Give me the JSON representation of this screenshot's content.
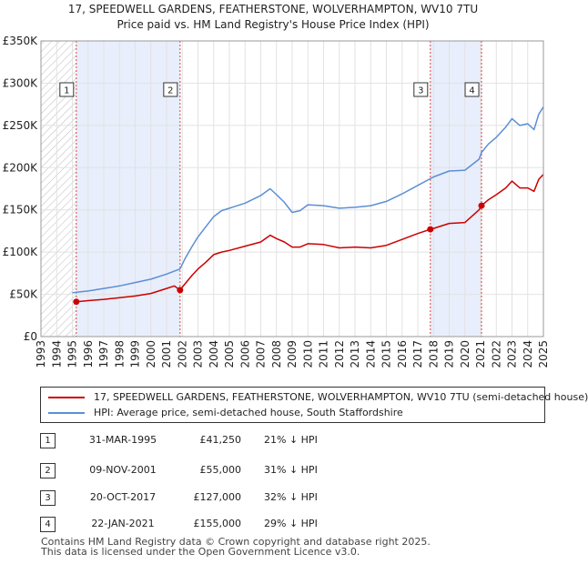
{
  "page": {
    "title_line1": "17, SPEEDWELL GARDENS, FEATHERSTONE, WOLVERHAMPTON, WV10 7TU",
    "title_line2": "Price paid vs. HM Land Registry's House Price Index (HPI)"
  },
  "legend": {
    "red_label": "17, SPEEDWELL GARDENS, FEATHERSTONE, WOLVERHAMPTON, WV10 7TU (semi-detached house)",
    "blue_label": "HPI: Average price, semi-detached house, South Staffordshire"
  },
  "transactions": [
    {
      "num": "1",
      "date": "31-MAR-1995",
      "price": "£41,250",
      "hpi": "21% ↓ HPI"
    },
    {
      "num": "2",
      "date": "09-NOV-2001",
      "price": "£55,000",
      "hpi": "31% ↓ HPI"
    },
    {
      "num": "3",
      "date": "20-OCT-2017",
      "price": "£127,000",
      "hpi": "32% ↓ HPI"
    },
    {
      "num": "4",
      "date": "22-JAN-2021",
      "price": "£155,000",
      "hpi": "29% ↓ HPI"
    }
  ],
  "footer": {
    "line1": "Contains HM Land Registry data © Crown copyright and database right 2025.",
    "line2": "This data is licensed under the Open Government Licence v3.0."
  },
  "chart_data": {
    "type": "line",
    "x_range": [
      1993,
      2025
    ],
    "ylim": [
      0,
      350000
    ],
    "y_ticks": [
      0,
      50000,
      100000,
      150000,
      200000,
      250000,
      300000,
      350000
    ],
    "y_tick_labels": [
      "£0",
      "£50K",
      "£100K",
      "£150K",
      "£200K",
      "£250K",
      "£300K",
      "£350K"
    ],
    "x_ticks": [
      1993,
      1994,
      1995,
      1996,
      1997,
      1998,
      1999,
      2000,
      2001,
      2002,
      2003,
      2004,
      2005,
      2006,
      2007,
      2008,
      2009,
      2010,
      2011,
      2012,
      2013,
      2014,
      2015,
      2016,
      2017,
      2018,
      2019,
      2020,
      2021,
      2022,
      2023,
      2024,
      2025
    ],
    "x_tick_labels": [
      "1993",
      "1994",
      "1995",
      "1996",
      "1997",
      "1998",
      "1999",
      "2000",
      "2001",
      "2002",
      "2003",
      "2004",
      "2005",
      "2006",
      "2007",
      "2008",
      "2009",
      "2010",
      "2011",
      "2012",
      "2013",
      "2014",
      "2015",
      "2016",
      "2017",
      "2018",
      "2019",
      "2020",
      "2021",
      "2022",
      "2023",
      "2024",
      "2025"
    ],
    "grid": true,
    "colors": {
      "price_paid": "#cc0000",
      "hpi": "#5b8fd4",
      "shade": "#e8eefb",
      "hatch": "#bbbbbb",
      "vline": "#dd4444"
    },
    "hatched_before": 1995.25,
    "series": [
      {
        "name": "17, SPEEDWELL GARDENS, FEATHERSTONE, WOLVERHAMPTON, WV10 7TU (semi-detached house)",
        "color": "#cc0000",
        "x": [
          1995.25,
          1996,
          1997,
          1998,
          1999,
          2000,
          2001,
          2001.5,
          2001.85,
          2002.2,
          2002.6,
          2003,
          2003.5,
          2004,
          2004.5,
          2005,
          2006,
          2007,
          2007.6,
          2008,
          2008.5,
          2009,
          2009.5,
          2010,
          2011,
          2012,
          2013,
          2014,
          2015,
          2016,
          2017,
          2017.8,
          2018,
          2019,
          2020,
          2020.9,
          2021.06,
          2021.5,
          2022,
          2022.6,
          2023,
          2023.5,
          2024,
          2024.4,
          2024.7,
          2025
        ],
        "y": [
          41250,
          42500,
          44000,
          46000,
          48000,
          51000,
          57000,
          60000,
          55000,
          63000,
          72000,
          80000,
          88000,
          97000,
          100000,
          102000,
          107000,
          112000,
          120000,
          116000,
          112000,
          106000,
          106000,
          110000,
          109000,
          105000,
          106000,
          105000,
          108000,
          115000,
          122000,
          127000,
          128000,
          134000,
          135000,
          150000,
          155000,
          162000,
          168000,
          176000,
          184000,
          176000,
          176000,
          172000,
          186000,
          192000
        ]
      },
      {
        "name": "HPI: Average price, semi-detached house, South Staffordshire",
        "color": "#5b8fd4",
        "x": [
          1995,
          1996,
          1997,
          1998,
          1999,
          2000,
          2001,
          2001.85,
          2002.2,
          2002.6,
          2003,
          2003.5,
          2004,
          2004.5,
          2005,
          2006,
          2007,
          2007.6,
          2008,
          2008.5,
          2009,
          2009.5,
          2010,
          2011,
          2012,
          2013,
          2014,
          2015,
          2016,
          2017,
          2017.8,
          2018,
          2019,
          2020,
          2020.9,
          2021.06,
          2021.5,
          2022,
          2022.6,
          2023,
          2023.5,
          2024,
          2024.4,
          2024.7,
          2025
        ],
        "y": [
          52000,
          54000,
          57000,
          60000,
          64000,
          68000,
          74000,
          80000,
          93000,
          106000,
          118000,
          130000,
          142000,
          149000,
          152000,
          158000,
          167000,
          175000,
          168000,
          159000,
          147000,
          149000,
          156000,
          155000,
          152000,
          153000,
          155000,
          160000,
          169000,
          179000,
          187000,
          189000,
          196000,
          197000,
          210000,
          218000,
          228000,
          236000,
          248000,
          258000,
          250000,
          252000,
          245000,
          263000,
          272000
        ]
      }
    ],
    "sales": [
      {
        "label": "1",
        "x": 1995.25,
        "y": 41250
      },
      {
        "label": "2",
        "x": 2001.86,
        "y": 55000
      },
      {
        "label": "3",
        "x": 2017.8,
        "y": 127000
      },
      {
        "label": "4",
        "x": 2021.06,
        "y": 155000
      }
    ],
    "shaded_ranges": [
      [
        1995.25,
        2001.86
      ],
      [
        2017.8,
        2021.06
      ]
    ]
  }
}
